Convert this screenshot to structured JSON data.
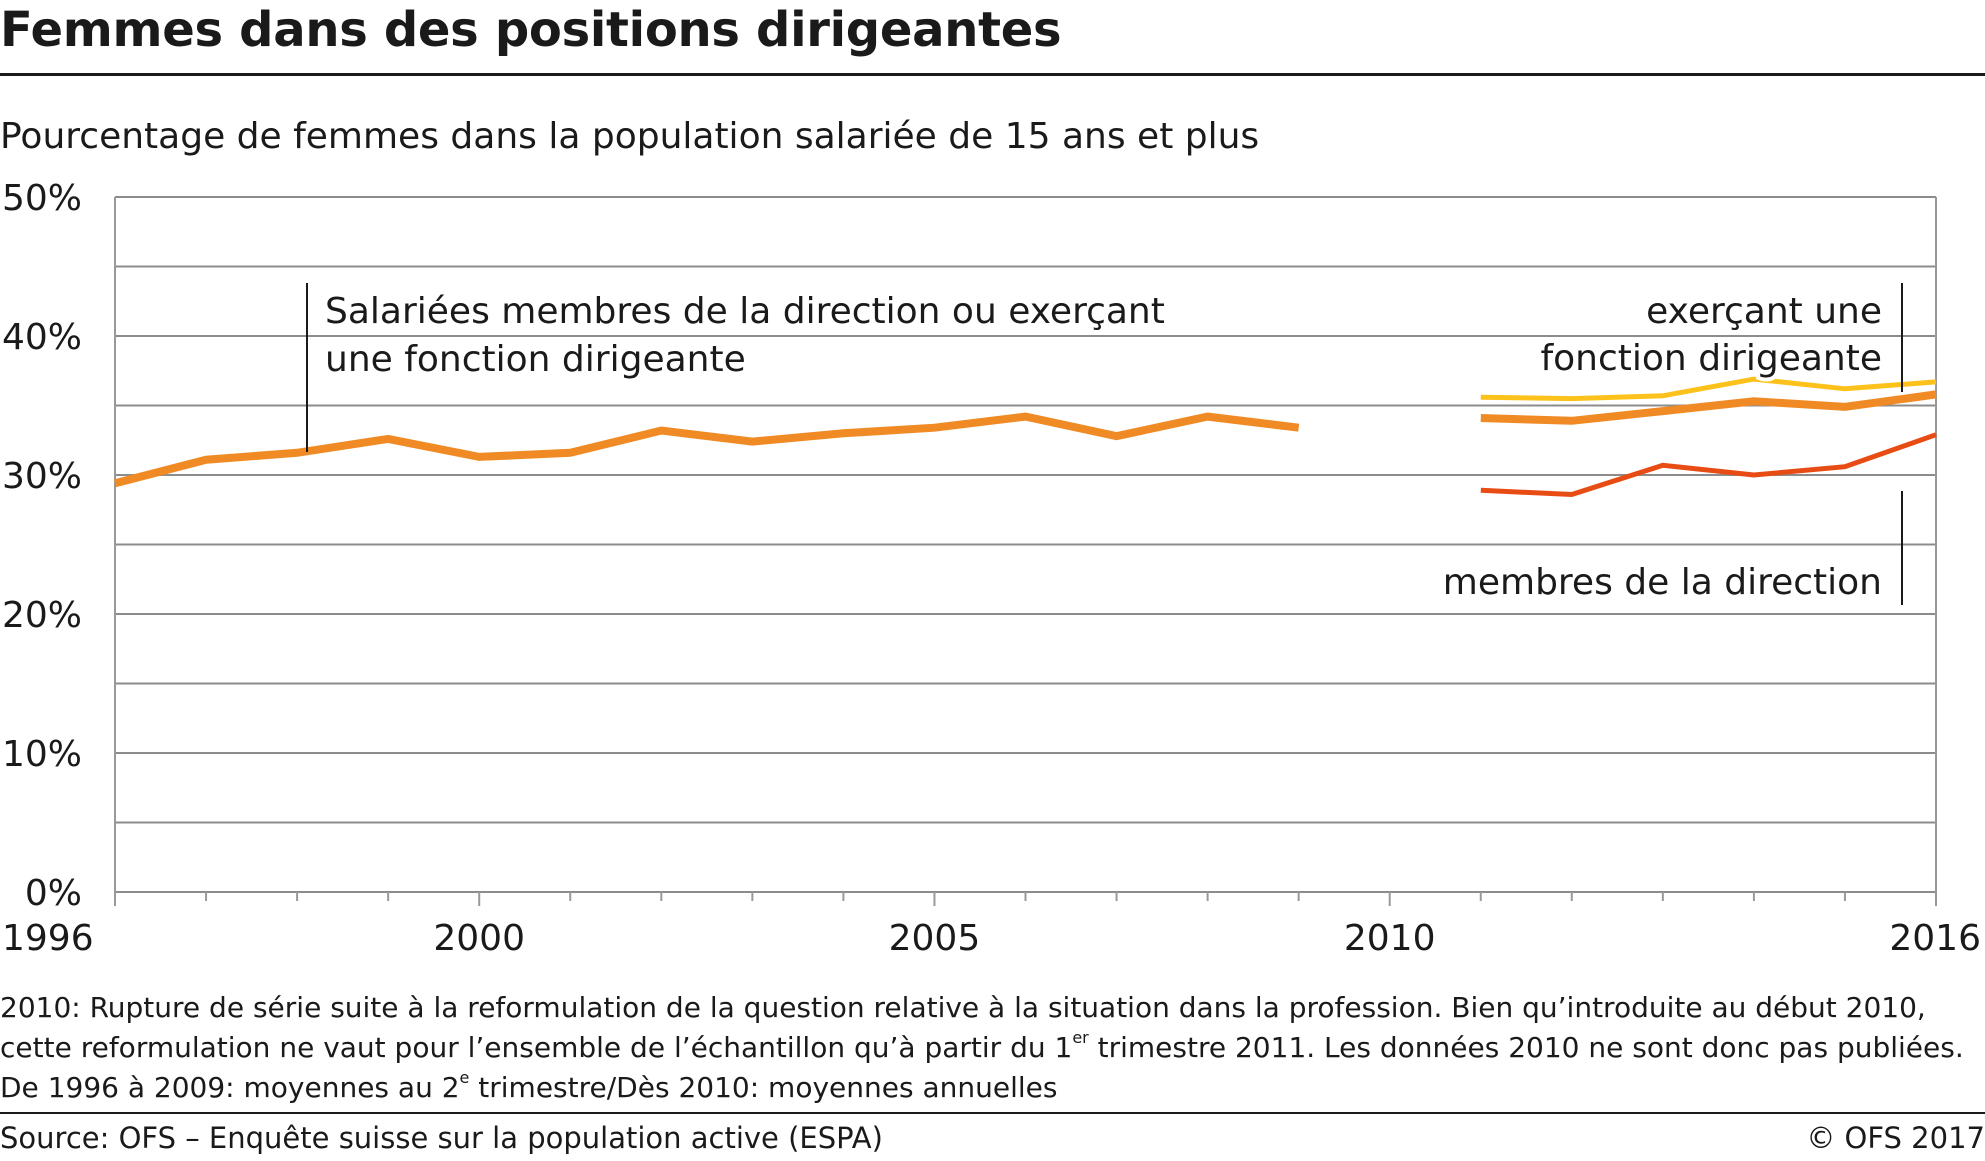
{
  "header": {
    "title": "Femmes dans des positions dirigeantes",
    "subtitle": "Pourcentage de femmes dans la population salariée de 15 ans et plus"
  },
  "chart_data": {
    "type": "line",
    "title": "Femmes dans des positions dirigeantes",
    "subtitle": "Pourcentage de femmes dans la population salariée de 15 ans et plus",
    "xlabel": "",
    "ylabel": "",
    "xlim": [
      1996,
      2016
    ],
    "ylim": [
      0,
      50
    ],
    "x_tick_labels": [
      "1996",
      "2000",
      "2005",
      "2010",
      "2016"
    ],
    "x_ticks": [
      1996,
      2000,
      2005,
      2010,
      2016
    ],
    "y_tick_labels": [
      "0%",
      "10%",
      "20%",
      "30%",
      "40%",
      "50%"
    ],
    "y_ticks": [
      0,
      10,
      20,
      30,
      40,
      50
    ],
    "grid": true,
    "legend": "direct labels",
    "colors": {
      "total": "#f08a24",
      "dirigeante": "#fcc21b",
      "direction": "#e84c15",
      "grid": "#8c8c8c",
      "axis": "#999999",
      "leader": "#1a1a1a"
    },
    "series": [
      {
        "name": "Salariées membres de la direction ou exerçant une fonction dirigeante",
        "label_lines": [
          "Salariées membres de la direction ou exerçant",
          "une fonction dirigeante"
        ],
        "color_key": "total",
        "stroke": 8,
        "segments": [
          {
            "x": [
              1996,
              1997,
              1998,
              1999,
              2000,
              2001,
              2002,
              2003,
              2004,
              2005,
              2006,
              2007,
              2008,
              2009
            ],
            "y": [
              29.4,
              31.1,
              31.6,
              32.6,
              31.3,
              31.6,
              33.2,
              32.4,
              33.0,
              33.4,
              34.2,
              32.8,
              34.2,
              33.4
            ]
          },
          {
            "x": [
              2011,
              2012,
              2013,
              2014,
              2015,
              2016
            ],
            "y": [
              34.1,
              33.9,
              34.6,
              35.3,
              34.9,
              35.8
            ]
          }
        ]
      },
      {
        "name": "exerçant une fonction dirigeante",
        "label_lines": [
          "exerçant une",
          "fonction dirigeante"
        ],
        "color_key": "dirigeante",
        "stroke": 5,
        "segments": [
          {
            "x": [
              2011,
              2012,
              2013,
              2014,
              2015,
              2016
            ],
            "y": [
              35.6,
              35.5,
              35.7,
              36.9,
              36.2,
              36.7
            ]
          }
        ]
      },
      {
        "name": "membres de la direction",
        "label_lines": [
          "membres de la direction"
        ],
        "color_key": "direction",
        "stroke": 5,
        "segments": [
          {
            "x": [
              2011,
              2012,
              2013,
              2014,
              2015,
              2016
            ],
            "y": [
              28.9,
              28.6,
              30.7,
              30.0,
              30.6,
              32.9
            ]
          }
        ]
      }
    ]
  },
  "notes": {
    "line1": "2010: Rupture de série suite à la reformulation de la question relative à la situation dans la profession. Bien qu’introduite au début 2010,",
    "line2_a": "cette reformulation ne vaut pour l’ensemble de l’échantillon qu’à partir du 1",
    "line2_sup": "er",
    "line2_b": " trimestre 2011. Les données 2010 ne sont donc pas publiées.",
    "line3_a": "De 1996 à 2009: moyennes au 2",
    "line3_sup": "e",
    "line3_b": " trimestre/Dès 2010: moyennes annuelles"
  },
  "footer": {
    "source": "Source: OFS – Enquête suisse sur la population active (ESPA)",
    "copyright": "© OFS 2017"
  }
}
